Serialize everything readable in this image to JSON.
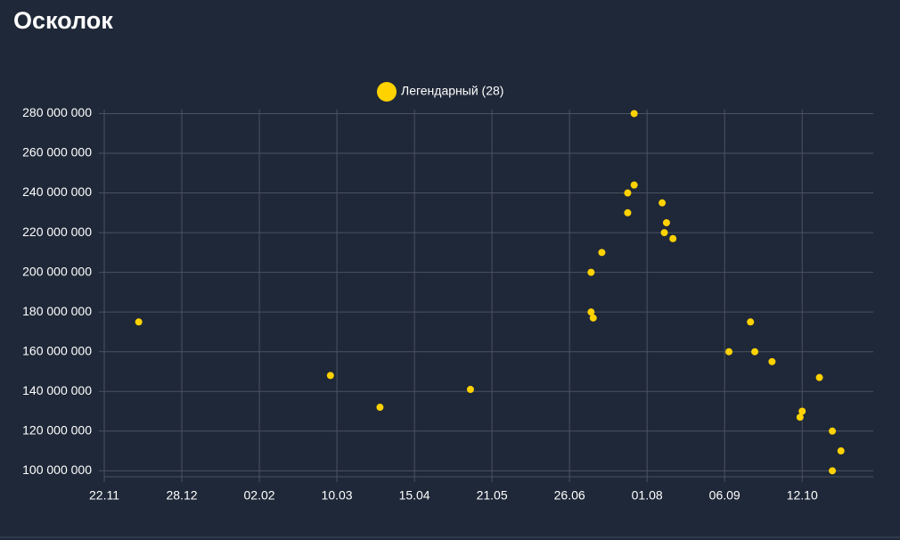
{
  "chart_data": {
    "type": "scatter",
    "title": "Осколок",
    "series": [
      {
        "name": "Легендарный (28)",
        "color": "#ffd200",
        "x": [
          "08.12",
          "07.03",
          "30.03",
          "11.05",
          "06.07",
          "06.07",
          "07.07",
          "11.07",
          "26.07",
          "26.07",
          "23.07",
          "23.07",
          "08.08",
          "10.08",
          "09.08",
          "13.08",
          "08.09",
          "18.09",
          "20.09",
          "28.09",
          "12.10",
          "11.10",
          "20.10",
          "26.10",
          "30.10",
          "26.10"
        ],
        "values": [
          175000000,
          148000000,
          132000000,
          141000000,
          180000000,
          200000000,
          177000000,
          210000000,
          280000000,
          244000000,
          240000000,
          230000000,
          235000000,
          225000000,
          220000000,
          217000000,
          160000000,
          175000000,
          160000000,
          155000000,
          130000000,
          127000000,
          147000000,
          120000000,
          110000000,
          100000000
        ]
      }
    ],
    "xlim": [
      "22.11",
      "14.11"
    ],
    "xticks": [
      "22.11",
      "28.12",
      "02.02",
      "10.03",
      "15.04",
      "21.05",
      "26.06",
      "01.08",
      "06.09",
      "12.10"
    ],
    "ylim": [
      97000000,
      282000000
    ],
    "yticks": [
      {
        "value": 100000000,
        "label": "100 000 000"
      },
      {
        "value": 120000000,
        "label": "120 000 000"
      },
      {
        "value": 140000000,
        "label": "140 000 000"
      },
      {
        "value": 160000000,
        "label": "160 000 000"
      },
      {
        "value": 180000000,
        "label": "180 000 000"
      },
      {
        "value": 200000000,
        "label": "200 000 000"
      },
      {
        "value": 220000000,
        "label": "220 000 000"
      },
      {
        "value": 240000000,
        "label": "240 000 000"
      },
      {
        "value": 260000000,
        "label": "260 000 000"
      },
      {
        "value": 280000000,
        "label": "280 000 000"
      }
    ],
    "grid": true
  }
}
